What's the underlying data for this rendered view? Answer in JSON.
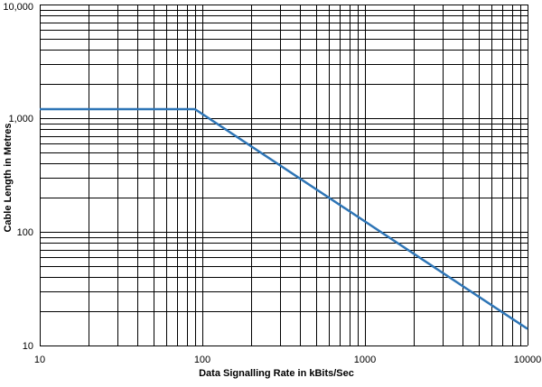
{
  "chart_data": {
    "type": "line",
    "title": "",
    "xlabel": "Data Signalling Rate in kBits/Sec",
    "ylabel": "Cable Length in Metres",
    "x_scale": "log",
    "y_scale": "log",
    "xlim": [
      10,
      10000
    ],
    "ylim": [
      10,
      10000
    ],
    "grid": true,
    "x_ticks": [
      {
        "value": 10,
        "label": "10"
      },
      {
        "value": 100,
        "label": "100"
      },
      {
        "value": 1000,
        "label": "1000"
      },
      {
        "value": 10000,
        "label": "10000"
      }
    ],
    "y_ticks": [
      {
        "value": 10,
        "label": "10"
      },
      {
        "value": 100,
        "label": "100"
      },
      {
        "value": 1000,
        "label": "1,000"
      },
      {
        "value": 10000,
        "label": "10,000"
      }
    ],
    "series": [
      {
        "color": "#2e75b6",
        "x": [
          10,
          90,
          10000
        ],
        "y": [
          1200,
          1200,
          14
        ]
      }
    ]
  }
}
